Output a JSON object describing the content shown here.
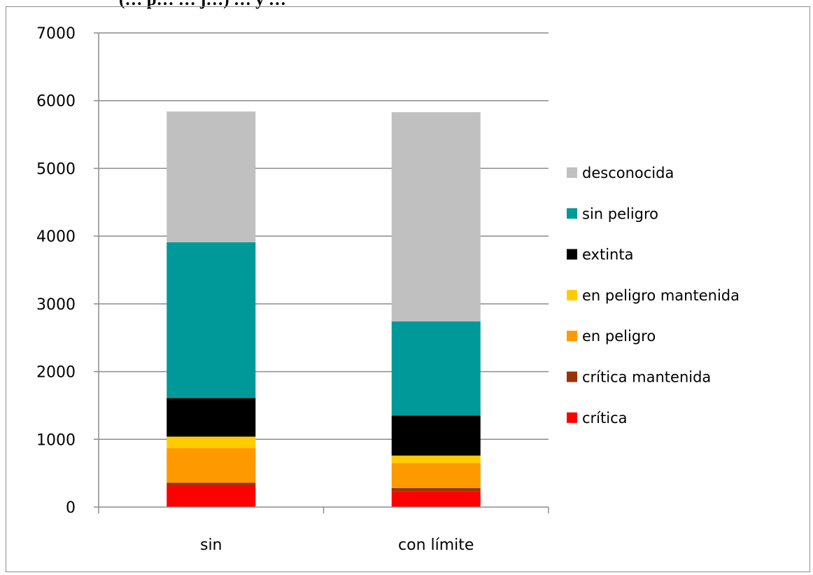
{
  "header_fragment": "(… p… … j…) … y …",
  "chart_data": {
    "type": "bar",
    "stacked": true,
    "categories": [
      "sin",
      "con límite"
    ],
    "series": [
      {
        "name": "crítica",
        "color": "#ff0000",
        "values": [
          310,
          230
        ]
      },
      {
        "name": "crítica mantenida",
        "color": "#993300",
        "values": [
          50,
          50
        ]
      },
      {
        "name": "en peligro",
        "color": "#ff9900",
        "values": [
          510,
          370
        ]
      },
      {
        "name": "en peligro mantenida",
        "color": "#ffcc00",
        "values": [
          170,
          110
        ]
      },
      {
        "name": "extinta",
        "color": "#000000",
        "values": [
          570,
          590
        ]
      },
      {
        "name": "sin peligro",
        "color": "#009999",
        "values": [
          2300,
          1390
        ]
      },
      {
        "name": "desconocida",
        "color": "#c0c0c0",
        "values": [
          1930,
          3090
        ]
      }
    ],
    "y_ticks": [
      "0",
      "1000",
      "2000",
      "3000",
      "4000",
      "5000",
      "6000",
      "7000"
    ],
    "ylim": [
      0,
      7000
    ],
    "grid": true,
    "legend": "right",
    "legend_order": [
      "desconocida",
      "sin peligro",
      "extinta",
      "en peligro mantenida",
      "en peligro",
      "crítica mantenida",
      "crítica"
    ]
  }
}
